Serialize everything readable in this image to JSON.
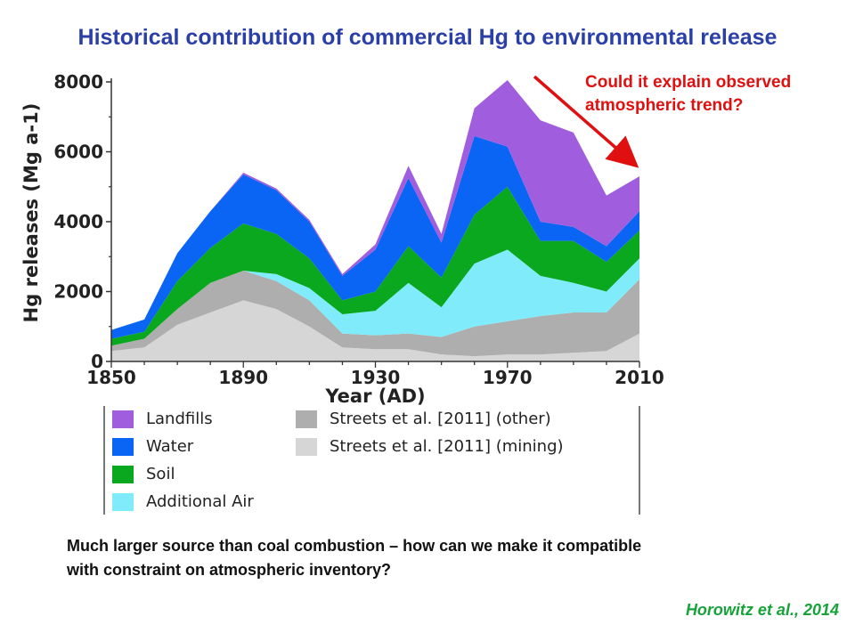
{
  "slide": {
    "title": "Historical contribution of commercial Hg to environmental release",
    "callout_line1": "Could it explain observed",
    "callout_line2": "atmospheric trend?",
    "bottom_line1": "Much larger source than coal combustion – how can we make it compatible",
    "bottom_line2": "with constraint on atmospheric inventory?",
    "citation": "Horowitz et al., 2014"
  },
  "colors": {
    "title": "#2a3fa8",
    "callout": "#e01010",
    "citation": "#16a33a"
  },
  "chart_data": {
    "type": "area",
    "stacked": true,
    "xlabel": "Year (AD)",
    "ylabel": "Hg releases (Mg a-1)",
    "xlim": [
      1850,
      2010
    ],
    "ylim": [
      0,
      8000
    ],
    "xticks": [
      1850,
      1890,
      1930,
      1970,
      2010
    ],
    "yticks": [
      0,
      2000,
      4000,
      6000,
      8000
    ],
    "x": [
      1850,
      1860,
      1870,
      1880,
      1890,
      1900,
      1910,
      1920,
      1930,
      1940,
      1950,
      1960,
      1970,
      1980,
      1990,
      2000,
      2010
    ],
    "series": [
      {
        "name": "Streets et al. [2011] (mining)",
        "color": "#d6d6d6",
        "values": [
          300,
          400,
          1050,
          1400,
          1750,
          1500,
          1000,
          400,
          350,
          350,
          200,
          150,
          200,
          200,
          250,
          300,
          800
        ]
      },
      {
        "name": "Streets et al. [2011] (other)",
        "color": "#aeaeae",
        "values": [
          150,
          250,
          450,
          850,
          850,
          800,
          750,
          400,
          400,
          450,
          500,
          850,
          950,
          1100,
          1150,
          1100,
          1550
        ]
      },
      {
        "name": "Additional Air",
        "color": "#80ecfb",
        "values": [
          0,
          0,
          0,
          0,
          0,
          200,
          350,
          550,
          700,
          1450,
          850,
          1800,
          2050,
          1150,
          850,
          600,
          600
        ]
      },
      {
        "name": "Soil",
        "color": "#0aa81e",
        "values": [
          200,
          200,
          800,
          1000,
          1350,
          1150,
          850,
          400,
          550,
          1050,
          850,
          1400,
          1800,
          1000,
          1200,
          850,
          800
        ]
      },
      {
        "name": "Water",
        "color": "#0a64f4",
        "values": [
          250,
          350,
          800,
          1050,
          1400,
          1250,
          1050,
          700,
          1200,
          1950,
          1000,
          2250,
          1150,
          550,
          400,
          450,
          550
        ]
      },
      {
        "name": "Landfills",
        "color": "#a05ede",
        "values": [
          0,
          0,
          0,
          0,
          50,
          50,
          50,
          50,
          150,
          350,
          250,
          800,
          1900,
          2900,
          2700,
          1450,
          1000
        ]
      }
    ],
    "legend_layout": [
      [
        "Landfills",
        "Streets et al. [2011] (other)"
      ],
      [
        "Water",
        "Streets et al. [2011] (mining)"
      ],
      [
        "Soil",
        ""
      ],
      [
        "Additional Air",
        ""
      ]
    ]
  }
}
